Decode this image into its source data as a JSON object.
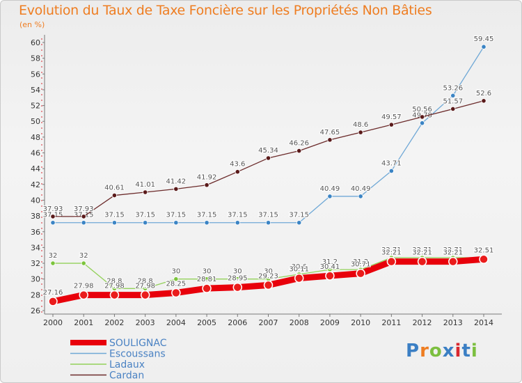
{
  "title": "Evolution du Taux de Taxe Foncière sur les Propriétés Non Bâties",
  "unit": "(en %)",
  "logo": {
    "text": "Proxiti",
    "colors": [
      "#3b7fc4",
      "#ee7d21",
      "#7cbf3f",
      "#3b7fc4",
      "#d9272e",
      "#3b7fc4",
      "#7cbf3f"
    ]
  },
  "chart_data": {
    "type": "line",
    "x": [
      2000,
      2001,
      2002,
      2003,
      2004,
      2005,
      2006,
      2007,
      2008,
      2009,
      2010,
      2011,
      2012,
      2013,
      2014
    ],
    "ylim": [
      26,
      60
    ],
    "yticks": [
      26,
      28,
      30,
      32,
      34,
      36,
      38,
      40,
      42,
      44,
      46,
      48,
      50,
      52,
      54,
      56,
      58,
      60
    ],
    "grid": false,
    "legend_position": "bottom-left",
    "series": [
      {
        "name": "SOULIGNAC",
        "color": "#e8000b",
        "marker": "#ea1c1c",
        "values": [
          27.16,
          27.98,
          27.98,
          27.98,
          28.25,
          28.81,
          28.95,
          29.23,
          30.11,
          30.41,
          30.71,
          32.21,
          32.21,
          32.21,
          32.51
        ]
      },
      {
        "name": "Escoussans",
        "color": "#6fa8d6",
        "marker": "#3b84c4",
        "values": [
          37.15,
          37.15,
          37.15,
          37.15,
          37.15,
          37.15,
          37.15,
          37.15,
          37.15,
          40.49,
          40.49,
          43.71,
          49.78,
          53.26,
          59.45
        ]
      },
      {
        "name": "Ladaux",
        "color": "#93d15a",
        "marker": "#7cc43c",
        "values": [
          32,
          32,
          28.8,
          28.8,
          30,
          30,
          30,
          30,
          30.6,
          31.2,
          31.2,
          32.71,
          32.71,
          32.71,
          32.71
        ]
      },
      {
        "name": "Cardan",
        "color": "#6b2a2a",
        "marker": "#5a1a1a",
        "values": [
          37.93,
          37.93,
          40.61,
          41.01,
          41.42,
          41.92,
          43.6,
          45.34,
          46.26,
          47.65,
          48.6,
          49.57,
          50.56,
          51.57,
          52.6
        ]
      }
    ]
  }
}
